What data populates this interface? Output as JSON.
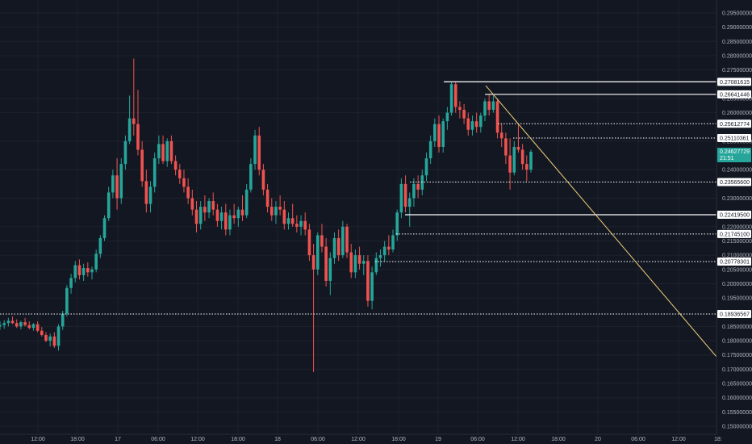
{
  "colors": {
    "background": "#131722",
    "grid": "#1e222d",
    "up": "#26a69a",
    "down": "#ef5350",
    "axis_text": "#b2b5be",
    "level_line": "#ffffff",
    "trend_line": "#f0d27a",
    "current_tag": "#26a69a"
  },
  "chart_data": {
    "type": "candlestick",
    "ylim": [
      0.149,
      0.298
    ],
    "xlim": [
      0,
      960
    ],
    "y_ticks": [
      "0.29500000",
      "0.29000000",
      "0.28500000",
      "0.28000000",
      "0.27500000",
      "0.26500000",
      "0.26000000",
      "0.25000000",
      "0.24000000",
      "0.23000000",
      "0.22000000",
      "0.21500000",
      "0.21000000",
      "0.20500000",
      "0.20000000",
      "0.19500000",
      "0.18500000",
      "0.18000000",
      "0.17500000",
      "0.17000000",
      "0.16500000",
      "0.16000000",
      "0.15500000",
      "0.15000000"
    ],
    "x_ticks": [
      {
        "label": "12:00",
        "x": 47
      },
      {
        "label": "18:00",
        "x": 96
      },
      {
        "label": "17",
        "x": 146
      },
      {
        "label": "06:00",
        "x": 196
      },
      {
        "label": "12:00",
        "x": 245
      },
      {
        "label": "18:00",
        "x": 295
      },
      {
        "label": "18",
        "x": 344
      },
      {
        "label": "06:00",
        "x": 394
      },
      {
        "label": "12:00",
        "x": 444
      },
      {
        "label": "18:00",
        "x": 494
      },
      {
        "label": "19",
        "x": 543
      },
      {
        "label": "06:00",
        "x": 592
      },
      {
        "label": "12:00",
        "x": 642
      },
      {
        "label": "18:00",
        "x": 692
      },
      {
        "label": "20",
        "x": 741
      },
      {
        "label": "06:00",
        "x": 791
      },
      {
        "label": "12:00",
        "x": 841
      },
      {
        "label": "18:",
        "x": 890
      }
    ],
    "levels": [
      {
        "value": 0.27081615,
        "label": "0.27081615",
        "style": "solid",
        "x_start": 550
      },
      {
        "value": 0.26641446,
        "label": "0.26641446",
        "style": "solid",
        "x_start": 601
      },
      {
        "value": 0.25612774,
        "label": "0.25612774",
        "style": "dotted",
        "x_start": 617
      },
      {
        "value": 0.25110361,
        "label": "0.25110361",
        "style": "dotted",
        "x_start": 636
      },
      {
        "value": 0.235656,
        "label": "0.23565600",
        "style": "dotted",
        "x_start": 508
      },
      {
        "value": 0.224195,
        "label": "0.22419500",
        "style": "solid",
        "x_start": 502
      },
      {
        "value": 0.217451,
        "label": "0.21745100",
        "style": "dotted",
        "x_start": 491
      },
      {
        "value": 0.20778301,
        "label": "0.20778301",
        "style": "dotted",
        "x_start": 465
      },
      {
        "value": 0.18936567,
        "label": "0.18936567",
        "style": "dotted",
        "x_start": 0
      }
    ],
    "current_price": {
      "value": 0.24627729,
      "label": "0.24627729",
      "countdown": "21:51"
    },
    "trend_line": {
      "x1": 602,
      "y1": 0.2695,
      "x2": 890,
      "y2": 0.1737
    },
    "candles": [
      [
        0.185,
        0.1868,
        0.1838,
        0.1855
      ],
      [
        0.1855,
        0.1872,
        0.1842,
        0.1862
      ],
      [
        0.1862,
        0.188,
        0.185,
        0.187
      ],
      [
        0.187,
        0.1885,
        0.1858,
        0.1862
      ],
      [
        0.1862,
        0.1875,
        0.1845,
        0.185
      ],
      [
        0.185,
        0.187,
        0.184,
        0.1865
      ],
      [
        0.1865,
        0.188,
        0.185,
        0.1855
      ],
      [
        0.1855,
        0.1868,
        0.184,
        0.1845
      ],
      [
        0.1845,
        0.1862,
        0.1835,
        0.1858
      ],
      [
        0.1858,
        0.1868,
        0.183,
        0.1835
      ],
      [
        0.1835,
        0.1848,
        0.1815,
        0.182
      ],
      [
        0.182,
        0.183,
        0.1795,
        0.18
      ],
      [
        0.18,
        0.1825,
        0.178,
        0.1815
      ],
      [
        0.1815,
        0.183,
        0.1775,
        0.1782
      ],
      [
        0.1782,
        0.1858,
        0.1765,
        0.185
      ],
      [
        0.185,
        0.1905,
        0.1838,
        0.1895
      ],
      [
        0.1895,
        0.1995,
        0.1885,
        0.1985
      ],
      [
        0.1985,
        0.2035,
        0.1965,
        0.202
      ],
      [
        0.202,
        0.208,
        0.2005,
        0.2065
      ],
      [
        0.2065,
        0.2085,
        0.2015,
        0.203
      ],
      [
        0.203,
        0.207,
        0.201,
        0.2055
      ],
      [
        0.2055,
        0.2075,
        0.2025,
        0.204
      ],
      [
        0.204,
        0.206,
        0.2015,
        0.205
      ],
      [
        0.205,
        0.212,
        0.204,
        0.2105
      ],
      [
        0.2105,
        0.217,
        0.209,
        0.216
      ],
      [
        0.216,
        0.224,
        0.215,
        0.223
      ],
      [
        0.223,
        0.234,
        0.222,
        0.232
      ],
      [
        0.232,
        0.24,
        0.23,
        0.238
      ],
      [
        0.238,
        0.244,
        0.226,
        0.23
      ],
      [
        0.23,
        0.244,
        0.228,
        0.242
      ],
      [
        0.242,
        0.252,
        0.24,
        0.25
      ],
      [
        0.25,
        0.266,
        0.249,
        0.258
      ],
      [
        0.258,
        0.279,
        0.252,
        0.256
      ],
      [
        0.256,
        0.268,
        0.245,
        0.247
      ],
      [
        0.247,
        0.25,
        0.234,
        0.236
      ],
      [
        0.236,
        0.24,
        0.225,
        0.228
      ],
      [
        0.228,
        0.236,
        0.225,
        0.234
      ],
      [
        0.234,
        0.246,
        0.232,
        0.244
      ],
      [
        0.244,
        0.252,
        0.242,
        0.249
      ],
      [
        0.249,
        0.252,
        0.242,
        0.243
      ],
      [
        0.243,
        0.251,
        0.241,
        0.25
      ],
      [
        0.25,
        0.252,
        0.242,
        0.243
      ],
      [
        0.243,
        0.245,
        0.238,
        0.24
      ],
      [
        0.24,
        0.242,
        0.235,
        0.237
      ],
      [
        0.237,
        0.24,
        0.232,
        0.234
      ],
      [
        0.234,
        0.237,
        0.228,
        0.23
      ],
      [
        0.23,
        0.233,
        0.224,
        0.226
      ],
      [
        0.226,
        0.229,
        0.218,
        0.221
      ],
      [
        0.221,
        0.229,
        0.219,
        0.227
      ],
      [
        0.227,
        0.231,
        0.222,
        0.225
      ],
      [
        0.225,
        0.23,
        0.223,
        0.229
      ],
      [
        0.229,
        0.232,
        0.224,
        0.226
      ],
      [
        0.226,
        0.228,
        0.22,
        0.222
      ],
      [
        0.222,
        0.227,
        0.219,
        0.225
      ],
      [
        0.225,
        0.228,
        0.217,
        0.219
      ],
      [
        0.219,
        0.226,
        0.217,
        0.224
      ],
      [
        0.224,
        0.228,
        0.221,
        0.223
      ],
      [
        0.223,
        0.227,
        0.22,
        0.226
      ],
      [
        0.226,
        0.231,
        0.222,
        0.224
      ],
      [
        0.224,
        0.235,
        0.223,
        0.233
      ],
      [
        0.233,
        0.244,
        0.232,
        0.242
      ],
      [
        0.242,
        0.254,
        0.24,
        0.252
      ],
      [
        0.252,
        0.255,
        0.238,
        0.24
      ],
      [
        0.24,
        0.242,
        0.231,
        0.233
      ],
      [
        0.233,
        0.235,
        0.225,
        0.227
      ],
      [
        0.227,
        0.23,
        0.222,
        0.224
      ],
      [
        0.224,
        0.229,
        0.221,
        0.227
      ],
      [
        0.227,
        0.231,
        0.224,
        0.226
      ],
      [
        0.226,
        0.229,
        0.219,
        0.221
      ],
      [
        0.221,
        0.225,
        0.219,
        0.223
      ],
      [
        0.223,
        0.228,
        0.22,
        0.221
      ],
      [
        0.221,
        0.224,
        0.218,
        0.22
      ],
      [
        0.22,
        0.224,
        0.217,
        0.222
      ],
      [
        0.222,
        0.225,
        0.217,
        0.219
      ],
      [
        0.219,
        0.221,
        0.208,
        0.21
      ],
      [
        0.21,
        0.214,
        0.169,
        0.205
      ],
      [
        0.205,
        0.218,
        0.203,
        0.217
      ],
      [
        0.217,
        0.221,
        0.211,
        0.213
      ],
      [
        0.213,
        0.216,
        0.199,
        0.201
      ],
      [
        0.201,
        0.211,
        0.196,
        0.209
      ],
      [
        0.209,
        0.218,
        0.207,
        0.216
      ],
      [
        0.216,
        0.219,
        0.208,
        0.21
      ],
      [
        0.21,
        0.222,
        0.209,
        0.22
      ],
      [
        0.22,
        0.221,
        0.209,
        0.211
      ],
      [
        0.211,
        0.214,
        0.202,
        0.204
      ],
      [
        0.204,
        0.212,
        0.202,
        0.21
      ],
      [
        0.21,
        0.213,
        0.205,
        0.207
      ],
      [
        0.207,
        0.21,
        0.203,
        0.208
      ],
      [
        0.208,
        0.21,
        0.192,
        0.194
      ],
      [
        0.194,
        0.206,
        0.191,
        0.204
      ],
      [
        0.204,
        0.211,
        0.203,
        0.209
      ],
      [
        0.209,
        0.212,
        0.206,
        0.21
      ],
      [
        0.21,
        0.215,
        0.208,
        0.213
      ],
      [
        0.213,
        0.217,
        0.21,
        0.212
      ],
      [
        0.212,
        0.219,
        0.211,
        0.217
      ],
      [
        0.217,
        0.226,
        0.215,
        0.225
      ],
      [
        0.225,
        0.237,
        0.223,
        0.235
      ],
      [
        0.235,
        0.238,
        0.225,
        0.227
      ],
      [
        0.227,
        0.232,
        0.22,
        0.23
      ],
      [
        0.23,
        0.237,
        0.227,
        0.235
      ],
      [
        0.235,
        0.238,
        0.23,
        0.233
      ],
      [
        0.233,
        0.24,
        0.231,
        0.238
      ],
      [
        0.238,
        0.246,
        0.236,
        0.244
      ],
      [
        0.244,
        0.252,
        0.242,
        0.25
      ],
      [
        0.25,
        0.258,
        0.248,
        0.256
      ],
      [
        0.256,
        0.259,
        0.246,
        0.248
      ],
      [
        0.248,
        0.258,
        0.246,
        0.257
      ],
      [
        0.257,
        0.262,
        0.254,
        0.26
      ],
      [
        0.26,
        0.2708,
        0.259,
        0.27
      ],
      [
        0.27,
        0.271,
        0.26,
        0.262
      ],
      [
        0.262,
        0.264,
        0.258,
        0.261
      ],
      [
        0.261,
        0.263,
        0.256,
        0.258
      ],
      [
        0.258,
        0.26,
        0.252,
        0.254
      ],
      [
        0.254,
        0.259,
        0.252,
        0.257
      ],
      [
        0.257,
        0.26,
        0.253,
        0.255
      ],
      [
        0.255,
        0.26,
        0.253,
        0.259
      ],
      [
        0.259,
        0.265,
        0.257,
        0.264
      ],
      [
        0.264,
        0.2665,
        0.259,
        0.261
      ],
      [
        0.261,
        0.266,
        0.26,
        0.264
      ],
      [
        0.264,
        0.265,
        0.251,
        0.253
      ],
      [
        0.253,
        0.256,
        0.248,
        0.251
      ],
      [
        0.251,
        0.253,
        0.242,
        0.245
      ],
      [
        0.245,
        0.251,
        0.233,
        0.239
      ],
      [
        0.239,
        0.25,
        0.238,
        0.248
      ],
      [
        0.248,
        0.256,
        0.246,
        0.247
      ],
      [
        0.247,
        0.249,
        0.24,
        0.242
      ],
      [
        0.242,
        0.245,
        0.236,
        0.24
      ],
      [
        0.24,
        0.247,
        0.239,
        0.2463
      ]
    ]
  }
}
